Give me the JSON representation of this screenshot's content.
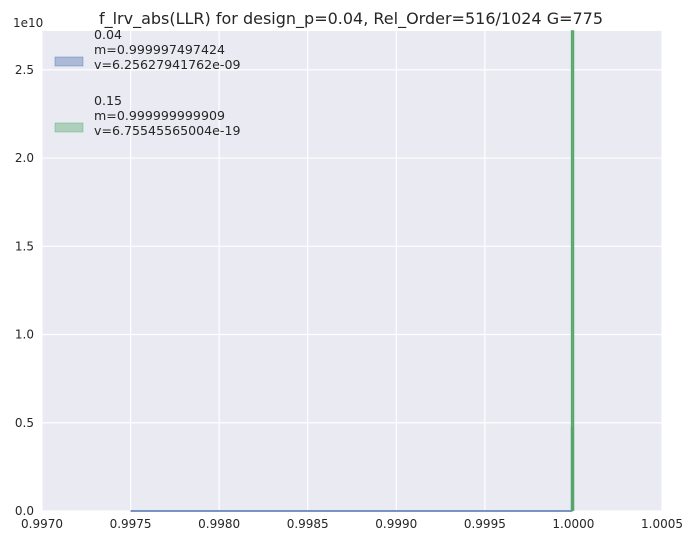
{
  "chart_data": {
    "type": "area",
    "title": "f_lrv_abs(LLR) for design_p=0.04, Rel_Order=516/1024 G=775",
    "xlabel": "",
    "ylabel": "",
    "y_multiplier_label": "1e10",
    "xlim": [
      0.997,
      1.0005
    ],
    "ylim": [
      0,
      27200000000.0
    ],
    "x_ticks": [
      0.997,
      0.9975,
      0.998,
      0.9985,
      0.999,
      0.9995,
      1.0,
      1.0005
    ],
    "x_tick_labels": [
      "0.9970",
      "0.9975",
      "0.9980",
      "0.9985",
      "0.9990",
      "0.9995",
      "1.0000",
      "1.0005"
    ],
    "y_ticks": [
      0,
      5000000000.0,
      10000000000.0,
      15000000000.0,
      20000000000.0,
      25000000000.0
    ],
    "y_tick_labels": [
      "0.0",
      "0.5",
      "1.0",
      "1.5",
      "2.0",
      "2.5"
    ],
    "grid": true,
    "legend_position": "top-left",
    "series": [
      {
        "name": "0.04\n m=0.999997497424\n v=6.25627941762e-09",
        "label_lines": [
          "0.04",
          " m=0.999997497424",
          " v=6.25627941762e-09"
        ],
        "color": "#4c72b0",
        "points": [
          [
            0.9975,
            0
          ],
          [
            0.99999,
            0
          ],
          [
            0.99999,
            4700000000.0
          ],
          [
            0.999999,
            4700000000.0
          ],
          [
            0.999999,
            0
          ]
        ]
      },
      {
        "name": "0.15\n m=0.999999999909\n v=6.75545565004e-19",
        "label_lines": [
          "0.15",
          " m=0.999999999909",
          " v=6.75545565004e-19"
        ],
        "color": "#55a868",
        "points": [
          [
            0.99999,
            0
          ],
          [
            0.99999,
            27200000000.0
          ],
          [
            1.0,
            27200000000.0
          ],
          [
            1.0,
            0
          ]
        ]
      }
    ]
  }
}
